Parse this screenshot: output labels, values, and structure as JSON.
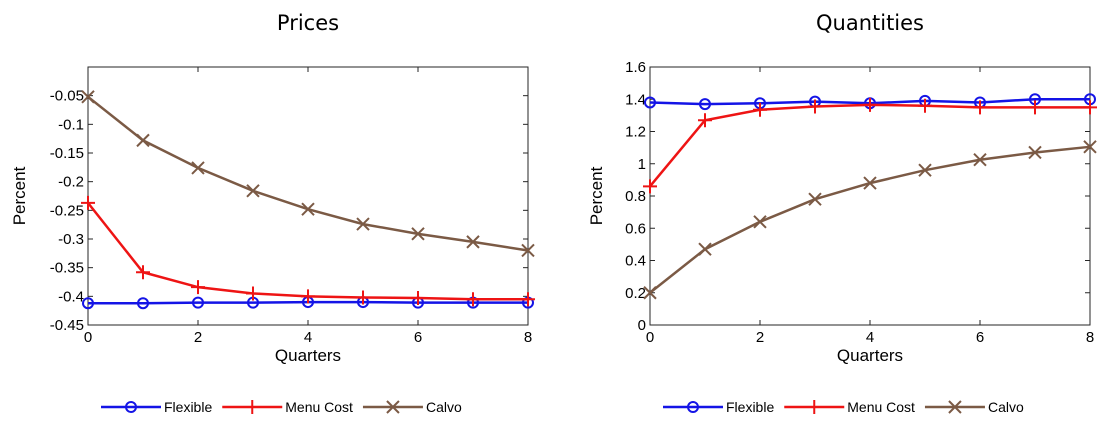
{
  "colors": {
    "Flexible": "#1414e6",
    "Menu Cost": "#ee1414",
    "Calvo": "#7b5a45"
  },
  "chart_data": [
    {
      "type": "line",
      "title": "Prices",
      "xlabel": "Quarters",
      "ylabel": "Percent",
      "xlim": [
        0,
        8
      ],
      "ylim": [
        -0.45,
        0
      ],
      "xticks": [
        0,
        2,
        4,
        6,
        8
      ],
      "yticks": [
        -0.45,
        -0.4,
        -0.35,
        -0.3,
        -0.25,
        -0.2,
        -0.15,
        -0.1,
        -0.05
      ],
      "ytick_labels": [
        "-0.45",
        "-0.4",
        "-0.35",
        "-0.3",
        "-0.25",
        "-0.2",
        "-0.15",
        "-0.1",
        "-0.05"
      ],
      "grid": false,
      "legend": "bottom",
      "x": [
        0,
        1,
        2,
        3,
        4,
        5,
        6,
        7,
        8
      ],
      "series": [
        {
          "name": "Flexible",
          "marker": "circle",
          "values": [
            -0.412,
            -0.412,
            -0.411,
            -0.411,
            -0.41,
            -0.41,
            -0.411,
            -0.411,
            -0.411
          ]
        },
        {
          "name": "Menu Cost",
          "marker": "plus",
          "values": [
            -0.237,
            -0.358,
            -0.384,
            -0.395,
            -0.4,
            -0.402,
            -0.403,
            -0.405,
            -0.405
          ]
        },
        {
          "name": "Calvo",
          "marker": "x",
          "values": [
            -0.052,
            -0.128,
            -0.176,
            -0.216,
            -0.248,
            -0.274,
            -0.291,
            -0.305,
            -0.32
          ]
        }
      ]
    },
    {
      "type": "line",
      "title": "Quantities",
      "xlabel": "Quarters",
      "ylabel": "Percent",
      "xlim": [
        0,
        8
      ],
      "ylim": [
        0,
        1.6
      ],
      "xticks": [
        0,
        2,
        4,
        6,
        8
      ],
      "yticks": [
        0,
        0.2,
        0.4,
        0.6,
        0.8,
        1,
        1.2,
        1.4,
        1.6
      ],
      "ytick_labels": [
        "0",
        "0.2",
        "0.4",
        "0.6",
        "0.8",
        "1",
        "1.2",
        "1.4",
        "1.6"
      ],
      "grid": false,
      "legend": "bottom",
      "x": [
        0,
        1,
        2,
        3,
        4,
        5,
        6,
        7,
        8
      ],
      "series": [
        {
          "name": "Flexible",
          "marker": "circle",
          "values": [
            1.38,
            1.37,
            1.375,
            1.385,
            1.375,
            1.39,
            1.38,
            1.4,
            1.4
          ]
        },
        {
          "name": "Menu Cost",
          "marker": "plus",
          "values": [
            0.86,
            1.27,
            1.335,
            1.355,
            1.365,
            1.36,
            1.35,
            1.35,
            1.35
          ]
        },
        {
          "name": "Calvo",
          "marker": "x",
          "values": [
            0.2,
            0.47,
            0.64,
            0.78,
            0.88,
            0.96,
            1.025,
            1.07,
            1.105
          ]
        }
      ]
    }
  ],
  "legends": [
    [
      "Flexible",
      "Menu Cost",
      "Calvo"
    ],
    [
      "Flexible",
      "Menu Cost",
      "Calvo"
    ]
  ]
}
